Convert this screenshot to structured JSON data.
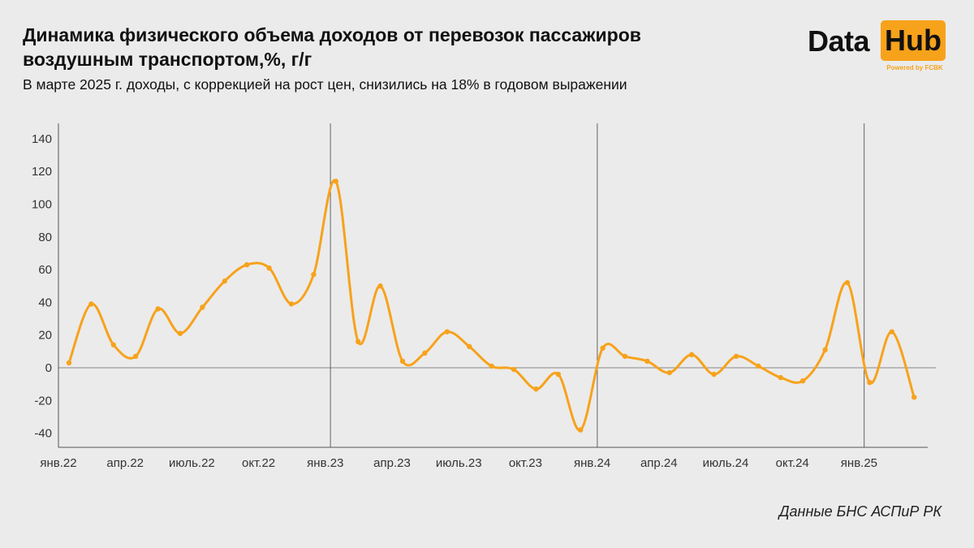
{
  "title": "Динамика физического объема доходов от перевозок пассажиров воздушным транспортом,%, г/г",
  "subtitle": "В марте 2025 г. доходы, с коррекцией на рост цен, снизились на 18% в годовом выражении",
  "source": "Данные БНС АСПиР РК",
  "logo": {
    "word1": "Data",
    "word2": "Hub",
    "tagline": "Powered by FCBK"
  },
  "colors": {
    "line": "#f7a21b",
    "background": "#ebebeb",
    "logo_accent": "#f7a21b"
  },
  "chart_data": {
    "type": "line",
    "title": "Динамика физического объема доходов от перевозок пассажиров воздушным транспортом,%, г/г",
    "xlabel": "",
    "ylabel": "",
    "ylim": [
      -50,
      150
    ],
    "yticks": [
      140,
      120,
      100,
      80,
      60,
      40,
      20,
      0,
      -20,
      -40
    ],
    "xtick_labels": [
      {
        "label": "янв.22",
        "index": 0
      },
      {
        "label": "апр.22",
        "index": 3
      },
      {
        "label": "июль.22",
        "index": 6
      },
      {
        "label": "окт.22",
        "index": 9
      },
      {
        "label": "янв.23",
        "index": 12
      },
      {
        "label": "апр.23",
        "index": 15
      },
      {
        "label": "июль.23",
        "index": 18
      },
      {
        "label": "окт.23",
        "index": 21
      },
      {
        "label": "янв.24",
        "index": 24
      },
      {
        "label": "апр.24",
        "index": 27
      },
      {
        "label": "июль.24",
        "index": 30
      },
      {
        "label": "окт.24",
        "index": 33
      },
      {
        "label": "янв.25",
        "index": 36
      }
    ],
    "year_dividers": [
      12,
      24,
      36
    ],
    "grid": false,
    "zero_line": true,
    "x": [
      "янв.22",
      "фев.22",
      "мар.22",
      "апр.22",
      "май.22",
      "июнь.22",
      "июль.22",
      "авг.22",
      "сен.22",
      "окт.22",
      "ноя.22",
      "дек.22",
      "янв.23",
      "фев.23",
      "мар.23",
      "апр.23",
      "май.23",
      "июнь.23",
      "июль.23",
      "авг.23",
      "сен.23",
      "окт.23",
      "ноя.23",
      "дек.23",
      "янв.24",
      "фев.24",
      "мар.24",
      "апр.24",
      "май.24",
      "июнь.24",
      "июль.24",
      "авг.24",
      "сен.24",
      "окт.24",
      "ноя.24",
      "дек.24",
      "янв.25",
      "фев.25",
      "мар.25"
    ],
    "series": [
      {
        "values": [
          3,
          39,
          14,
          7,
          36,
          21,
          37,
          53,
          63,
          61,
          39,
          57,
          114,
          16,
          50,
          4,
          9,
          22,
          13,
          1,
          -1,
          -13,
          -4,
          -38,
          12,
          7,
          4,
          -3,
          8,
          -4,
          7,
          1,
          -6,
          -8,
          11,
          52,
          -9,
          22,
          -18
        ]
      }
    ]
  }
}
